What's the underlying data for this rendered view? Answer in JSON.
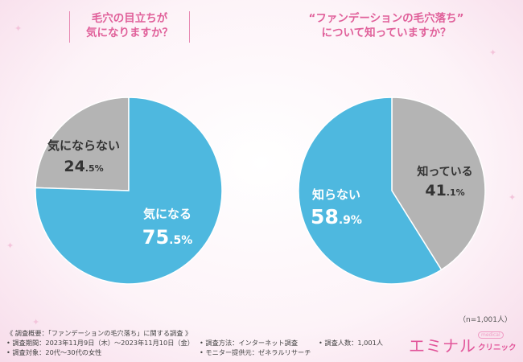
{
  "left_title": {
    "line1": "毛穴の目立ちが",
    "line2": "気になりますか？"
  },
  "right_title": {
    "line1": "“ファンデーションの毛穴落ち”",
    "line2": "について知っていますか？"
  },
  "sample_size": "（n=1,001人）",
  "colors": {
    "accent": "#e0609a",
    "blue": "#4eb8df",
    "gray": "#b4b4b4"
  },
  "chart_data": [
    {
      "type": "pie",
      "title": "毛穴の目立ちが気になりますか？",
      "unit": "%",
      "slices": [
        {
          "label": "気にならない",
          "value": 24.5,
          "color": "#b4b4b4"
        },
        {
          "label": "気になる",
          "value": 75.5,
          "color": "#4eb8df"
        }
      ]
    },
    {
      "type": "pie",
      "title": "“ファンデーションの毛穴落ち”について知っていますか？",
      "unit": "%",
      "slices": [
        {
          "label": "知っている",
          "value": 41.1,
          "color": "#b4b4b4"
        },
        {
          "label": "知らない",
          "value": 58.9,
          "color": "#4eb8df"
        }
      ]
    }
  ],
  "footer": {
    "overview": "《 調査概要：「ファンデーションの毛穴落ち」に関する調査 》",
    "period": "• 調査期間：2023年11月9日（木）～2023年11月10日（金）",
    "method": "• 調査方法：インターネット調査",
    "count": "• 調査人数：1,001人",
    "target": "• 調査対象：20代～30代の女性",
    "provider": "• モニター提供元：ゼネラルリサーチ"
  },
  "brand": {
    "name": "エミナル",
    "sub": "クリニック",
    "badge": "medical"
  }
}
